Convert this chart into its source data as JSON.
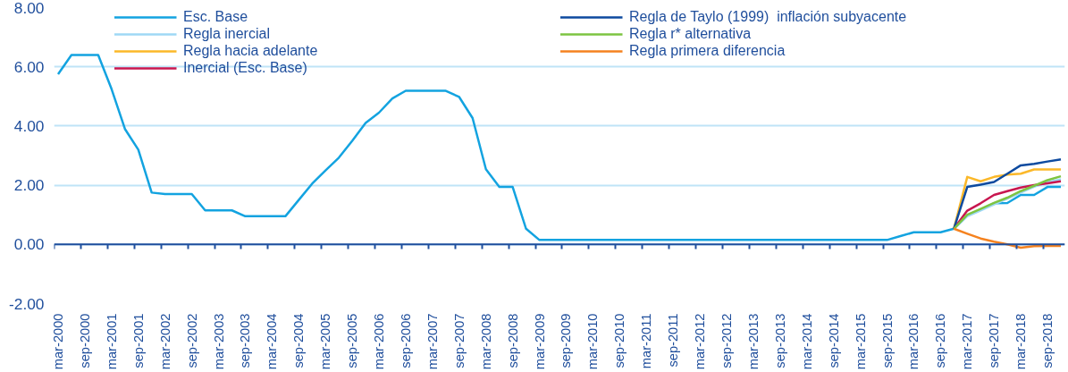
{
  "chart_data": {
    "type": "line",
    "categories": [
      "mar-2000",
      null,
      "sep-2000",
      null,
      "mar-2001",
      null,
      "sep-2001",
      null,
      "mar-2002",
      null,
      "sep-2002",
      null,
      "mar-2003",
      null,
      "sep-2003",
      null,
      "mar-2004",
      null,
      "sep-2004",
      null,
      "mar-2005",
      null,
      "sep-2005",
      null,
      "mar-2006",
      null,
      "sep-2006",
      null,
      "mar-2007",
      null,
      "sep-2007",
      null,
      "mar-2008",
      null,
      "sep-2008",
      null,
      "mar-2009",
      null,
      "sep-2009",
      null,
      "mar-2010",
      null,
      "sep-2010",
      null,
      "mar-2011",
      null,
      "sep-2011",
      null,
      "mar-2012",
      null,
      "sep-2012",
      null,
      "mar-2013",
      null,
      "sep-2013",
      null,
      "mar-2014",
      null,
      "sep-2014",
      null,
      "mar-2015",
      null,
      "sep-2015",
      null,
      "mar-2016",
      null,
      "sep-2016",
      null,
      "mar-2017",
      null,
      "sep-2017",
      null,
      "mar-2018",
      null,
      "sep-2018",
      null
    ],
    "ylim": [
      -2,
      8
    ],
    "yticks": [
      {
        "value": -2,
        "label": "-2.00"
      },
      {
        "value": 0,
        "label": "0.00"
      },
      {
        "value": 2,
        "label": "2.00"
      },
      {
        "value": 4,
        "label": "4.00"
      },
      {
        "value": 6,
        "label": "6.00"
      },
      {
        "value": 8,
        "label": "8.00"
      }
    ],
    "grid": "y",
    "ref_lines": [
      {
        "axis": "y",
        "value": 0,
        "color": "#1f4e9c"
      }
    ],
    "legend": "top",
    "line_style": "solid",
    "marker": "none",
    "series": [
      {
        "name": "Esc. Base",
        "color": "#13a3e0",
        "values": [
          5.75,
          6.4,
          6.4,
          6.4,
          5.25,
          3.9,
          3.2,
          1.75,
          1.7,
          1.7,
          1.7,
          1.15,
          1.15,
          1.15,
          0.95,
          0.95,
          0.95,
          0.95,
          1.5,
          2.05,
          2.5,
          2.93,
          3.5,
          4.1,
          4.45,
          4.93,
          5.19,
          5.19,
          5.19,
          5.19,
          4.98,
          4.27,
          2.54,
          1.94,
          1.94,
          0.53,
          0.15,
          0.15,
          0.15,
          0.15,
          0.15,
          0.15,
          0.15,
          0.15,
          0.15,
          0.15,
          0.15,
          0.15,
          0.15,
          0.15,
          0.15,
          0.15,
          0.15,
          0.15,
          0.15,
          0.15,
          0.15,
          0.15,
          0.15,
          0.15,
          0.15,
          0.15,
          0.15,
          0.28,
          0.41,
          0.41,
          0.41,
          0.53,
          0.97,
          1.17,
          1.39,
          1.4,
          1.67,
          1.67,
          1.94,
          1.94
        ]
      },
      {
        "name": "Regla inercial",
        "color": "#9fd8f5",
        "values": [
          null,
          null,
          null,
          null,
          null,
          null,
          null,
          null,
          null,
          null,
          null,
          null,
          null,
          null,
          null,
          null,
          null,
          null,
          null,
          null,
          null,
          null,
          null,
          null,
          null,
          null,
          null,
          null,
          null,
          null,
          null,
          null,
          null,
          null,
          null,
          null,
          null,
          null,
          null,
          null,
          null,
          null,
          null,
          null,
          null,
          null,
          null,
          null,
          null,
          null,
          null,
          null,
          null,
          null,
          null,
          null,
          null,
          null,
          null,
          null,
          null,
          null,
          null,
          null,
          null,
          null,
          null,
          0.53,
          0.95,
          1.15,
          1.35,
          1.55,
          1.75,
          1.95,
          2.1,
          2.2
        ]
      },
      {
        "name": "Regla hacia adelante",
        "color": "#fbb829",
        "values": [
          null,
          null,
          null,
          null,
          null,
          null,
          null,
          null,
          null,
          null,
          null,
          null,
          null,
          null,
          null,
          null,
          null,
          null,
          null,
          null,
          null,
          null,
          null,
          null,
          null,
          null,
          null,
          null,
          null,
          null,
          null,
          null,
          null,
          null,
          null,
          null,
          null,
          null,
          null,
          null,
          null,
          null,
          null,
          null,
          null,
          null,
          null,
          null,
          null,
          null,
          null,
          null,
          null,
          null,
          null,
          null,
          null,
          null,
          null,
          null,
          null,
          null,
          null,
          null,
          null,
          null,
          null,
          0.53,
          2.28,
          2.13,
          2.28,
          2.36,
          2.39,
          2.53,
          2.53,
          2.53
        ]
      },
      {
        "name": "Inercial (Esc. Base)",
        "color": "#c8164f",
        "values": [
          null,
          null,
          null,
          null,
          null,
          null,
          null,
          null,
          null,
          null,
          null,
          null,
          null,
          null,
          null,
          null,
          null,
          null,
          null,
          null,
          null,
          null,
          null,
          null,
          null,
          null,
          null,
          null,
          null,
          null,
          null,
          null,
          null,
          null,
          null,
          null,
          null,
          null,
          null,
          null,
          null,
          null,
          null,
          null,
          null,
          null,
          null,
          null,
          null,
          null,
          null,
          null,
          null,
          null,
          null,
          null,
          null,
          null,
          null,
          null,
          null,
          null,
          null,
          null,
          null,
          null,
          null,
          0.53,
          1.14,
          1.39,
          1.67,
          1.8,
          1.92,
          2.0,
          2.06,
          2.13
        ]
      },
      {
        "name": "Regla de Taylo (1999)  inflación subyacente",
        "color": "#0d4a9f",
        "values": [
          null,
          null,
          null,
          null,
          null,
          null,
          null,
          null,
          null,
          null,
          null,
          null,
          null,
          null,
          null,
          null,
          null,
          null,
          null,
          null,
          null,
          null,
          null,
          null,
          null,
          null,
          null,
          null,
          null,
          null,
          null,
          null,
          null,
          null,
          null,
          null,
          null,
          null,
          null,
          null,
          null,
          null,
          null,
          null,
          null,
          null,
          null,
          null,
          null,
          null,
          null,
          null,
          null,
          null,
          null,
          null,
          null,
          null,
          null,
          null,
          null,
          null,
          null,
          null,
          null,
          null,
          null,
          0.53,
          1.94,
          2.02,
          2.11,
          2.39,
          2.67,
          2.72,
          2.8,
          2.87
        ]
      },
      {
        "name": "Regla r* alternativa",
        "color": "#7dc441",
        "values": [
          null,
          null,
          null,
          null,
          null,
          null,
          null,
          null,
          null,
          null,
          null,
          null,
          null,
          null,
          null,
          null,
          null,
          null,
          null,
          null,
          null,
          null,
          null,
          null,
          null,
          null,
          null,
          null,
          null,
          null,
          null,
          null,
          null,
          null,
          null,
          null,
          null,
          null,
          null,
          null,
          null,
          null,
          null,
          null,
          null,
          null,
          null,
          null,
          null,
          null,
          null,
          null,
          null,
          null,
          null,
          null,
          null,
          null,
          null,
          null,
          null,
          null,
          null,
          null,
          null,
          null,
          null,
          0.53,
          1.0,
          1.2,
          1.4,
          1.58,
          1.8,
          1.98,
          2.17,
          2.3
        ]
      },
      {
        "name": "Regla primera diferencia",
        "color": "#f5821f",
        "values": [
          null,
          null,
          null,
          null,
          null,
          null,
          null,
          null,
          null,
          null,
          null,
          null,
          null,
          null,
          null,
          null,
          null,
          null,
          null,
          null,
          null,
          null,
          null,
          null,
          null,
          null,
          null,
          null,
          null,
          null,
          null,
          null,
          null,
          null,
          null,
          null,
          null,
          null,
          null,
          null,
          null,
          null,
          null,
          null,
          null,
          null,
          null,
          null,
          null,
          null,
          null,
          null,
          null,
          null,
          null,
          null,
          null,
          null,
          null,
          null,
          null,
          null,
          null,
          null,
          null,
          null,
          null,
          0.53,
          0.36,
          0.2,
          0.09,
          0.0,
          -0.11,
          -0.06,
          -0.05,
          -0.05
        ]
      }
    ]
  }
}
